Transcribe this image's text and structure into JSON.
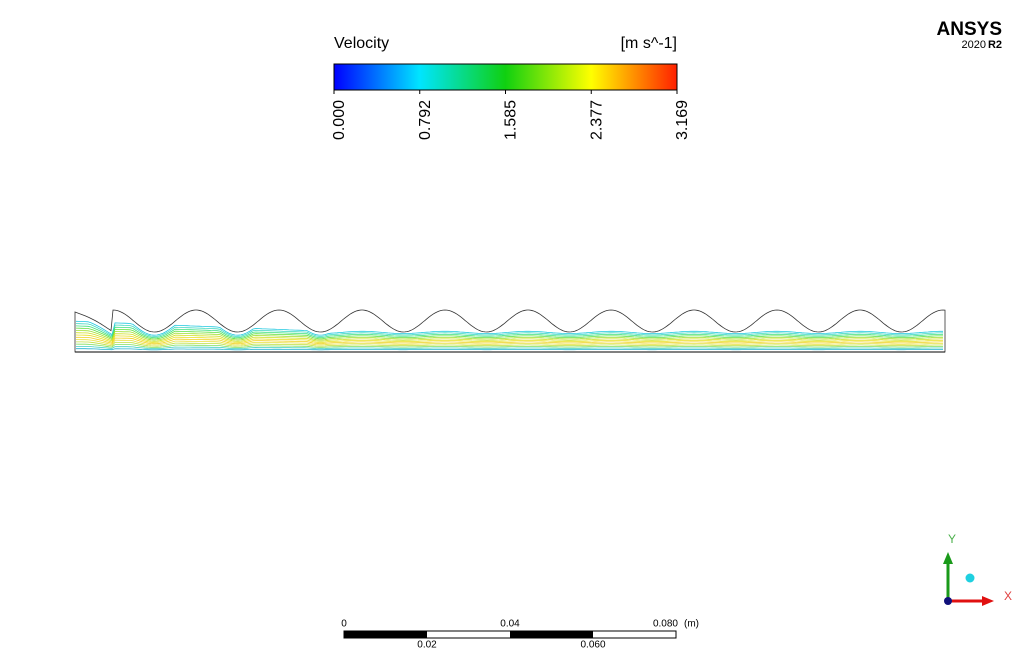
{
  "logo": {
    "brand": "ANSYS",
    "year": "2020",
    "release": "R2"
  },
  "legend": {
    "title": "Velocity",
    "unit": "[m s^-1]",
    "ticks": [
      "0.000",
      "0.792",
      "1.585",
      "2.377",
      "3.169"
    ]
  },
  "scale_bar": {
    "top_labels": [
      "0",
      "0.04",
      "0.080"
    ],
    "unit": "(m)",
    "bottom_labels": [
      "0.02",
      "0.060"
    ]
  },
  "axes": {
    "y": "Y",
    "x": "X"
  }
}
